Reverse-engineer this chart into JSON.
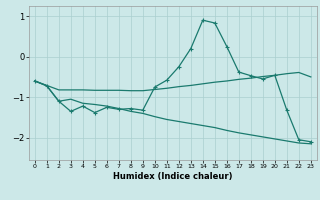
{
  "title": "",
  "xlabel": "Humidex (Indice chaleur)",
  "bg_color": "#cce8e8",
  "line_color": "#1a7a6e",
  "grid_color": "#aacfcf",
  "xlim": [
    -0.5,
    23.5
  ],
  "ylim": [
    -2.55,
    1.25
  ],
  "yticks": [
    -2,
    -1,
    0,
    1
  ],
  "xticks": [
    0,
    1,
    2,
    3,
    4,
    5,
    6,
    7,
    8,
    9,
    10,
    11,
    12,
    13,
    14,
    15,
    16,
    17,
    18,
    19,
    20,
    21,
    22,
    23
  ],
  "line1_x": [
    0,
    1,
    2,
    3,
    4,
    5,
    6,
    7,
    8,
    9,
    10,
    11,
    12,
    13,
    14,
    15,
    16,
    17,
    18,
    19,
    20,
    21,
    22,
    23
  ],
  "line1_y": [
    -0.6,
    -0.72,
    -1.1,
    -1.35,
    -1.22,
    -1.38,
    -1.25,
    -1.3,
    -1.28,
    -1.32,
    -0.75,
    -0.58,
    -0.25,
    0.2,
    0.9,
    0.83,
    0.25,
    -0.38,
    -0.47,
    -0.55,
    -0.46,
    -1.32,
    -2.05,
    -2.1
  ],
  "line2_x": [
    0,
    2,
    23
  ],
  "line2_y": [
    -0.6,
    -0.82,
    -0.5
  ],
  "line2_full_x": [
    0,
    1,
    2,
    3,
    4,
    5,
    6,
    7,
    8,
    9,
    10,
    11,
    12,
    13,
    14,
    15,
    16,
    17,
    18,
    19,
    20,
    21,
    22,
    23
  ],
  "line2_full_y": [
    -0.6,
    -0.71,
    -0.82,
    -0.82,
    -0.82,
    -0.83,
    -0.83,
    -0.83,
    -0.84,
    -0.84,
    -0.81,
    -0.78,
    -0.74,
    -0.71,
    -0.67,
    -0.63,
    -0.6,
    -0.56,
    -0.53,
    -0.49,
    -0.46,
    -0.42,
    -0.39,
    -0.5
  ],
  "line3_x": [
    0,
    1,
    2,
    3,
    4,
    5,
    6,
    7,
    8,
    9,
    10,
    11,
    12,
    13,
    14,
    15,
    16,
    17,
    18,
    19,
    20,
    21,
    22,
    23
  ],
  "line3_y": [
    -0.6,
    -0.72,
    -1.1,
    -1.05,
    -1.15,
    -1.18,
    -1.22,
    -1.28,
    -1.35,
    -1.4,
    -1.48,
    -1.55,
    -1.6,
    -1.65,
    -1.7,
    -1.75,
    -1.82,
    -1.88,
    -1.93,
    -1.98,
    -2.03,
    -2.08,
    -2.13,
    -2.15
  ]
}
